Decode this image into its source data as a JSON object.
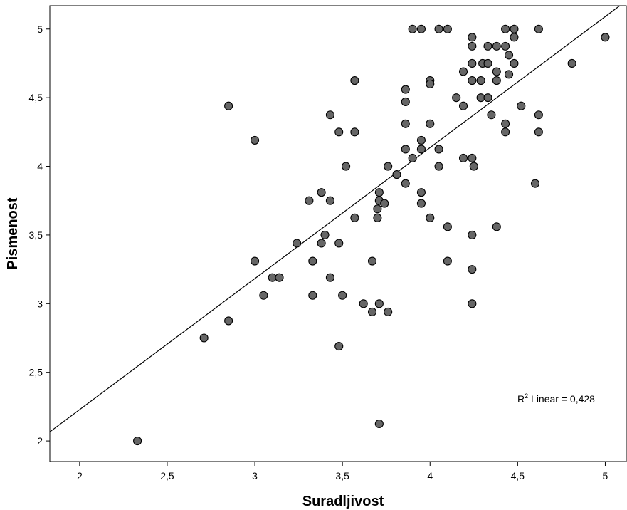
{
  "chart_data": {
    "type": "scatter",
    "xlabel": "Suradljivost",
    "ylabel": "Pismenost",
    "xlim": [
      1.83,
      5.12
    ],
    "ylim": [
      1.85,
      5.17
    ],
    "x_ticks": [
      "2",
      "2,5",
      "3",
      "3,5",
      "4",
      "4,5",
      "5"
    ],
    "y_ticks": [
      "2",
      "2,5",
      "3",
      "3,5",
      "4",
      "4,5",
      "5"
    ],
    "grid": false,
    "fit_line": {
      "intercept": 0.32,
      "slope": 0.9542,
      "label_prefix": "R",
      "label_sup": "2",
      "label_text": " Linear = 0,428"
    },
    "marker_fill": "#666666",
    "marker_stroke": "#000000",
    "points": [
      [
        2.33,
        2.0
      ],
      [
        2.71,
        2.75
      ],
      [
        2.85,
        2.875
      ],
      [
        2.85,
        4.44
      ],
      [
        3.0,
        4.19
      ],
      [
        3.0,
        3.31
      ],
      [
        3.05,
        3.06
      ],
      [
        3.1,
        3.19
      ],
      [
        3.14,
        3.19
      ],
      [
        3.24,
        3.44
      ],
      [
        3.31,
        3.75
      ],
      [
        3.33,
        3.31
      ],
      [
        3.33,
        3.06
      ],
      [
        3.38,
        3.81
      ],
      [
        3.38,
        3.44
      ],
      [
        3.4,
        3.5
      ],
      [
        3.43,
        4.375
      ],
      [
        3.43,
        3.75
      ],
      [
        3.43,
        3.19
      ],
      [
        3.48,
        4.25
      ],
      [
        3.48,
        3.44
      ],
      [
        3.48,
        2.69
      ],
      [
        3.5,
        3.06
      ],
      [
        3.52,
        4.0
      ],
      [
        3.57,
        4.625
      ],
      [
        3.57,
        4.25
      ],
      [
        3.57,
        3.625
      ],
      [
        3.62,
        3.0
      ],
      [
        3.67,
        3.31
      ],
      [
        3.67,
        2.94
      ],
      [
        3.7,
        3.69
      ],
      [
        3.7,
        3.625
      ],
      [
        3.71,
        3.81
      ],
      [
        3.71,
        3.75
      ],
      [
        3.71,
        3.0
      ],
      [
        3.71,
        2.125
      ],
      [
        3.74,
        3.73
      ],
      [
        3.76,
        4.0
      ],
      [
        3.76,
        2.94
      ],
      [
        3.81,
        3.94
      ],
      [
        3.86,
        4.56
      ],
      [
        3.86,
        4.47
      ],
      [
        3.86,
        4.31
      ],
      [
        3.86,
        4.125
      ],
      [
        3.86,
        3.875
      ],
      [
        3.9,
        5.0
      ],
      [
        3.9,
        4.06
      ],
      [
        3.95,
        5.0
      ],
      [
        3.95,
        4.19
      ],
      [
        3.95,
        4.125
      ],
      [
        3.95,
        3.81
      ],
      [
        3.95,
        3.73
      ],
      [
        4.0,
        4.625
      ],
      [
        4.0,
        4.6
      ],
      [
        4.0,
        4.31
      ],
      [
        4.0,
        3.625
      ],
      [
        4.05,
        5.0
      ],
      [
        4.05,
        4.125
      ],
      [
        4.05,
        4.0
      ],
      [
        4.1,
        5.0
      ],
      [
        4.1,
        3.56
      ],
      [
        4.1,
        3.31
      ],
      [
        4.15,
        4.5
      ],
      [
        4.19,
        4.69
      ],
      [
        4.19,
        4.44
      ],
      [
        4.19,
        4.06
      ],
      [
        4.24,
        4.94
      ],
      [
        4.24,
        4.875
      ],
      [
        4.24,
        4.75
      ],
      [
        4.24,
        4.625
      ],
      [
        4.24,
        4.06
      ],
      [
        4.24,
        3.5
      ],
      [
        4.24,
        3.25
      ],
      [
        4.24,
        3.0
      ],
      [
        4.25,
        4.0
      ],
      [
        4.29,
        4.625
      ],
      [
        4.29,
        4.5
      ],
      [
        4.3,
        4.75
      ],
      [
        4.33,
        4.875
      ],
      [
        4.33,
        4.75
      ],
      [
        4.33,
        4.5
      ],
      [
        4.35,
        4.375
      ],
      [
        4.38,
        4.875
      ],
      [
        4.38,
        4.69
      ],
      [
        4.38,
        4.625
      ],
      [
        4.38,
        3.56
      ],
      [
        4.43,
        5.0
      ],
      [
        4.43,
        4.875
      ],
      [
        4.43,
        4.31
      ],
      [
        4.43,
        4.25
      ],
      [
        4.45,
        4.81
      ],
      [
        4.45,
        4.67
      ],
      [
        4.48,
        5.0
      ],
      [
        4.48,
        4.94
      ],
      [
        4.48,
        4.75
      ],
      [
        4.52,
        4.44
      ],
      [
        4.6,
        3.875
      ],
      [
        4.62,
        5.0
      ],
      [
        4.62,
        4.375
      ],
      [
        4.62,
        4.25
      ],
      [
        4.81,
        4.75
      ],
      [
        5.0,
        4.94
      ]
    ]
  }
}
